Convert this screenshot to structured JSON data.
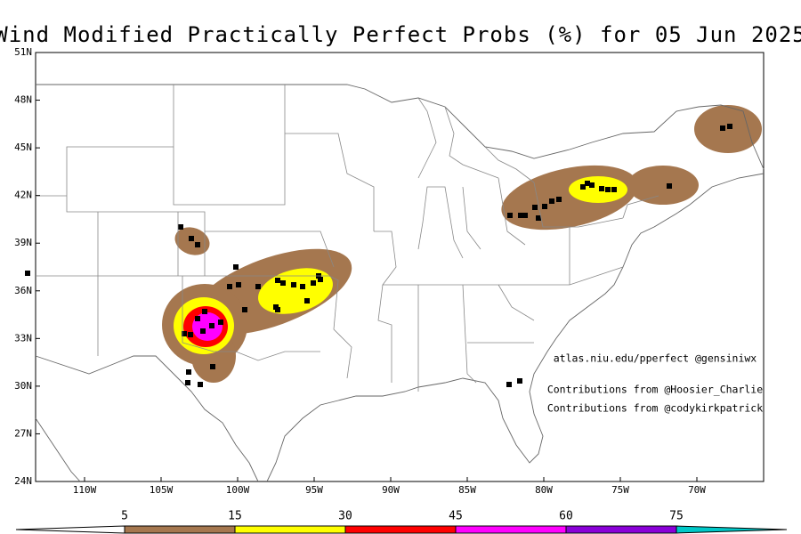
{
  "title": "Wind Modified Practically Perfect Probs (%) for 05 Jun 2025",
  "lat_labels": [
    "51N",
    "48N",
    "45N",
    "42N",
    "39N",
    "36N",
    "33N",
    "30N",
    "27N",
    "24N"
  ],
  "lon_labels": [
    "110W",
    "105W",
    "100W",
    "95W",
    "90W",
    "85W",
    "80W",
    "75W",
    "70W"
  ],
  "credits": [
    "atlas.niu.edu/pperfect @gensiniwx",
    "Contributions from @Hoosier_Charlie",
    "Contributions from @codykirkpatrick"
  ],
  "colorbar": {
    "levels": [
      5,
      15,
      30,
      45,
      60,
      75
    ],
    "colors": [
      "#ffffff",
      "#a5774f",
      "#ffff00",
      "#ff0000",
      "#ff00ff",
      "#8a00d8",
      "#00c8c8"
    ]
  }
}
